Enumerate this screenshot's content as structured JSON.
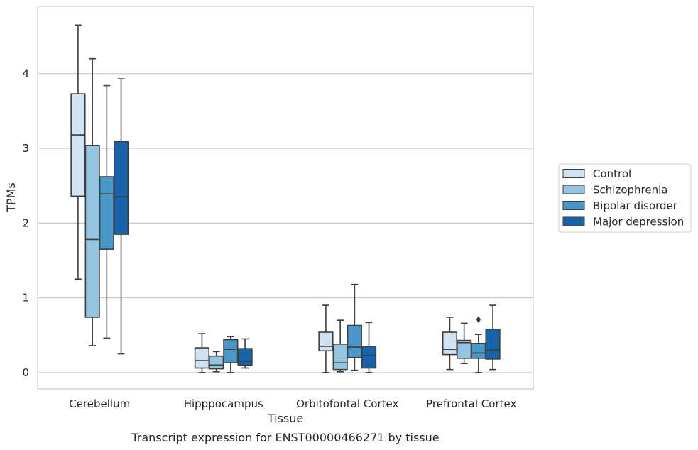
{
  "chart_data": {
    "type": "box",
    "title": "",
    "caption": "Transcript expression for ENST00000466271 by tissue",
    "xlabel": "Tissue",
    "ylabel": "TPMs",
    "ylim": [
      -0.22,
      4.9
    ],
    "yticks": [
      0,
      1,
      2,
      3,
      4
    ],
    "grid": "horizontal",
    "legend_position": "right",
    "categories": [
      "Cerebellum",
      "Hipppocampus",
      "Orbitofontal Cortex",
      "Prefrontal Cortex"
    ],
    "series": [
      {
        "name": "Control",
        "color": "#d0e1f2",
        "boxes": [
          {
            "whislo": 1.25,
            "q1": 2.36,
            "med": 3.18,
            "q3": 3.73,
            "whishi": 4.65,
            "fliers": []
          },
          {
            "whislo": 0.0,
            "q1": 0.06,
            "med": 0.16,
            "q3": 0.33,
            "whishi": 0.52,
            "fliers": []
          },
          {
            "whislo": 0.0,
            "q1": 0.29,
            "med": 0.35,
            "q3": 0.54,
            "whishi": 0.9,
            "fliers": []
          },
          {
            "whislo": 0.04,
            "q1": 0.24,
            "med": 0.31,
            "q3": 0.54,
            "whishi": 0.74,
            "fliers": []
          }
        ]
      },
      {
        "name": "Schizophrenia",
        "color": "#94c4df",
        "boxes": [
          {
            "whislo": 0.36,
            "q1": 0.74,
            "med": 1.78,
            "q3": 3.04,
            "whishi": 4.2,
            "fliers": []
          },
          {
            "whislo": 0.01,
            "q1": 0.05,
            "med": 0.1,
            "q3": 0.22,
            "whishi": 0.28,
            "fliers": []
          },
          {
            "whislo": 0.01,
            "q1": 0.04,
            "med": 0.13,
            "q3": 0.38,
            "whishi": 0.7,
            "fliers": []
          },
          {
            "whislo": 0.12,
            "q1": 0.19,
            "med": 0.4,
            "q3": 0.43,
            "whishi": 0.66,
            "fliers": []
          }
        ]
      },
      {
        "name": "Bipolar disorder",
        "color": "#4a98c9",
        "boxes": [
          {
            "whislo": 0.46,
            "q1": 1.65,
            "med": 2.39,
            "q3": 2.62,
            "whishi": 3.84,
            "fliers": []
          },
          {
            "whislo": 0.0,
            "q1": 0.13,
            "med": 0.31,
            "q3": 0.44,
            "whishi": 0.48,
            "fliers": []
          },
          {
            "whislo": 0.03,
            "q1": 0.2,
            "med": 0.34,
            "q3": 0.63,
            "whishi": 1.18,
            "fliers": []
          },
          {
            "whislo": 0.0,
            "q1": 0.19,
            "med": 0.26,
            "q3": 0.39,
            "whishi": 0.51,
            "fliers": [
              0.71
            ]
          }
        ]
      },
      {
        "name": "Major depression",
        "color": "#1764ab",
        "boxes": [
          {
            "whislo": 0.25,
            "q1": 1.85,
            "med": 2.35,
            "q3": 3.09,
            "whishi": 3.93,
            "fliers": []
          },
          {
            "whislo": 0.06,
            "q1": 0.1,
            "med": 0.15,
            "q3": 0.32,
            "whishi": 0.45,
            "fliers": []
          },
          {
            "whislo": 0.0,
            "q1": 0.06,
            "med": 0.23,
            "q3": 0.35,
            "whishi": 0.67,
            "fliers": []
          },
          {
            "whislo": 0.04,
            "q1": 0.18,
            "med": 0.3,
            "q3": 0.58,
            "whishi": 0.9,
            "fliers": []
          }
        ]
      }
    ]
  }
}
